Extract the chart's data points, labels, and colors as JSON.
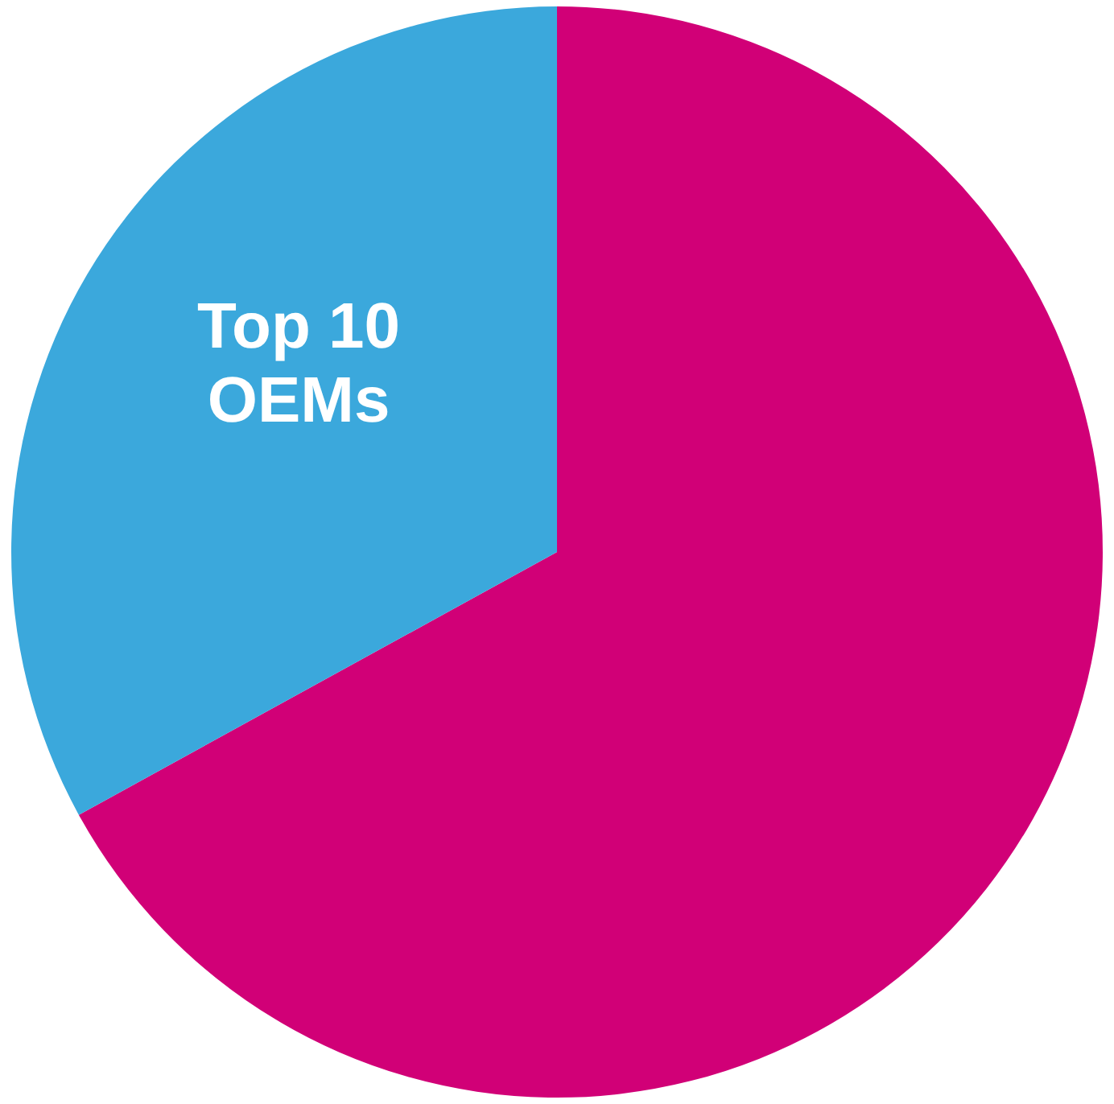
{
  "chart_data": {
    "type": "pie",
    "categories": [
      null,
      "Top 10 OEMs"
    ],
    "values": [
      67,
      33
    ],
    "colors": [
      "#d10077",
      "#3ba8dc"
    ],
    "legend": false
  }
}
